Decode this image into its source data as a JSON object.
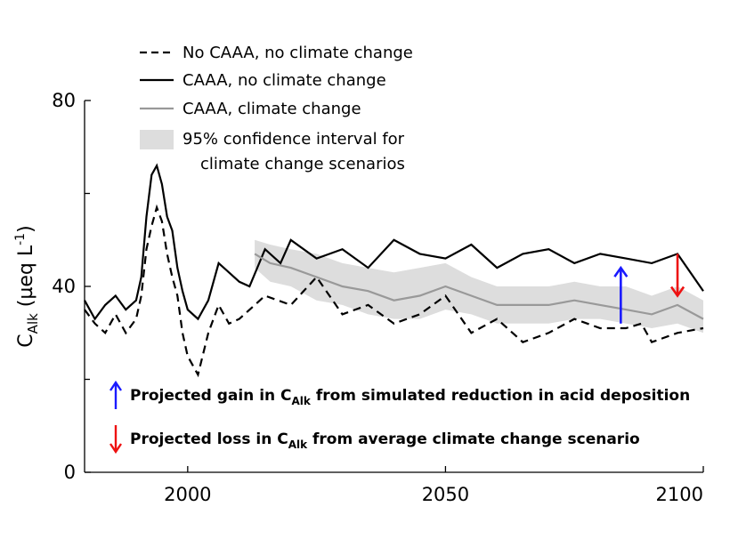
{
  "chart_data": {
    "type": "line",
    "xlim": [
      1980,
      2100
    ],
    "ylim": [
      0,
      80
    ],
    "ylabel": {
      "main": "C",
      "sub": "Alk",
      "unit_pre": " (µeq L",
      "unit_sup": "-1",
      "unit_post": ")"
    },
    "xticks": [
      {
        "value": 2000,
        "label": "2000"
      },
      {
        "value": 2050,
        "label": "2050"
      },
      {
        "value": 2100,
        "label": "2100"
      }
    ],
    "yticks": [
      {
        "value": 0,
        "label": "0"
      },
      {
        "value": 40,
        "label": "40"
      },
      {
        "value": 80,
        "label": "80"
      }
    ],
    "legend": [
      {
        "key": "no_caaa",
        "label": "No CAAA, no climate change",
        "style": "dashed",
        "color": "#000000"
      },
      {
        "key": "caaa",
        "label": "CAAA, no climate change",
        "style": "solid",
        "color": "#000000"
      },
      {
        "key": "caaa_cc",
        "label": "CAAA, climate change",
        "style": "solid",
        "color": "#999999"
      },
      {
        "key": "ci",
        "label_line1": "95% confidence interval for",
        "label_line2": "climate change scenarios",
        "style": "band",
        "color": "#dddddd"
      }
    ],
    "series": [
      {
        "key": "no_caaa",
        "x": [
          1980,
          1982,
          1984,
          1986,
          1988,
          1990,
          1991,
          1992,
          1993,
          1994,
          1995,
          1996,
          1997,
          1998,
          1999,
          2000,
          2002,
          2004,
          2006,
          2008,
          2010,
          2015,
          2020,
          2025,
          2030,
          2035,
          2040,
          2045,
          2050,
          2055,
          2060,
          2065,
          2070,
          2075,
          2080,
          2085,
          2088,
          2090,
          2095,
          2100
        ],
        "y": [
          35,
          32,
          30,
          34,
          30,
          33,
          38,
          48,
          53,
          57,
          54,
          47,
          42,
          38,
          30,
          25,
          21,
          30,
          36,
          32,
          33,
          38,
          36,
          42,
          34,
          36,
          32,
          34,
          38,
          30,
          33,
          28,
          30,
          33,
          31,
          31,
          32,
          28,
          30,
          31
        ]
      },
      {
        "key": "caaa",
        "x": [
          1980,
          1982,
          1984,
          1986,
          1988,
          1990,
          1991,
          1992,
          1993,
          1994,
          1995,
          1996,
          1997,
          1998,
          1999,
          2000,
          2002,
          2004,
          2006,
          2008,
          2010,
          2012,
          2015,
          2018,
          2020,
          2025,
          2030,
          2035,
          2040,
          2045,
          2050,
          2055,
          2060,
          2065,
          2070,
          2075,
          2080,
          2085,
          2090,
          2095,
          2100
        ],
        "y": [
          37,
          33,
          36,
          38,
          35,
          37,
          42,
          55,
          64,
          66,
          62,
          55,
          52,
          44,
          39,
          35,
          33,
          37,
          45,
          43,
          41,
          40,
          48,
          45,
          50,
          46,
          48,
          44,
          50,
          47,
          46,
          49,
          44,
          47,
          48,
          45,
          47,
          46,
          45,
          47,
          39
        ]
      },
      {
        "key": "caaa_cc",
        "x": [
          2013,
          2016,
          2020,
          2025,
          2030,
          2035,
          2040,
          2045,
          2050,
          2055,
          2060,
          2065,
          2070,
          2075,
          2080,
          2085,
          2090,
          2095,
          2100
        ],
        "y": [
          47,
          45,
          44,
          42,
          40,
          39,
          37,
          38,
          40,
          38,
          36,
          36,
          36,
          37,
          36,
          35,
          34,
          36,
          33
        ]
      }
    ],
    "band": {
      "key": "ci",
      "x": [
        2013,
        2016,
        2020,
        2025,
        2030,
        2035,
        2040,
        2045,
        2050,
        2055,
        2060,
        2065,
        2070,
        2075,
        2080,
        2085,
        2090,
        2095,
        2100
      ],
      "lower": [
        44,
        41,
        40,
        37,
        36,
        34,
        33,
        33,
        35,
        34,
        32,
        32,
        32,
        33,
        33,
        32,
        31,
        32,
        30
      ],
      "upper": [
        50,
        49,
        48,
        47,
        45,
        44,
        43,
        44,
        45,
        42,
        40,
        40,
        40,
        41,
        40,
        40,
        38,
        40,
        37
      ]
    },
    "arrows": [
      {
        "key": "gain",
        "color": "#1a1aff",
        "x": 2084,
        "from": 32,
        "to": 44
      },
      {
        "key": "loss",
        "color": "#ee1111",
        "x": 2095,
        "from": 47,
        "to": 38
      }
    ],
    "annotations": [
      {
        "key": "gain",
        "color": "#1a1aff",
        "direction": "up",
        "pre": "Projected gain in C",
        "sub": "Alk",
        "post": " from simulated reduction in acid deposition"
      },
      {
        "key": "loss",
        "color": "#ee1111",
        "direction": "down",
        "pre": "Projected loss in C",
        "sub": "Alk",
        "post": " from average climate change scenario"
      }
    ]
  }
}
